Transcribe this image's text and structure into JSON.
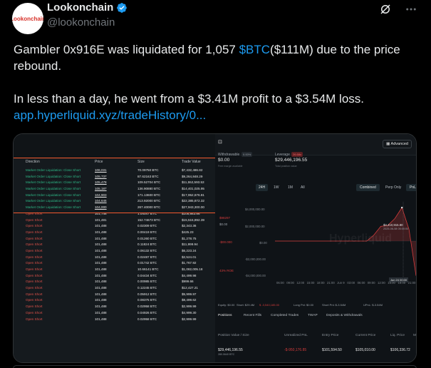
{
  "author": {
    "name": "Lookonchain",
    "handle": "@lookonchain",
    "avatar_text": "Lookonchain"
  },
  "icons": {
    "verified": "verified-badge-icon",
    "grok": "grok-icon",
    "more": "more-icon"
  },
  "tweet": {
    "line1_pre": "Gambler 0x916E was liquidated for 1,057 ",
    "line1_cashtag": "$BTC",
    "line1_post": "($111M) due to the price rebound.",
    "line2": "In less than a day, he went from a $3.41M profit to a $3.54M loss.",
    "link": "app.hyperliquid.xyz/tradeHistory/0..."
  },
  "trade_table": {
    "columns": [
      "Direction",
      "Price",
      "Size",
      "Trade Value"
    ],
    "rows": [
      {
        "dir": "Market Order Liquidation: Close Short",
        "price": "106,031",
        "size": "70.09750 BTC",
        "value": "$7,432,486.82",
        "type": "liq"
      },
      {
        "dir": "Market Order Liquidation: Close Short",
        "price": "105,737",
        "size": "87.62163 BTC",
        "value": "$9,264,848.29",
        "type": "liq"
      },
      {
        "dir": "Market Order Liquidation: Close Short",
        "price": "105,478",
        "size": "109.52704 BTC",
        "value": "$11,552,593.53",
        "type": "liq"
      },
      {
        "dir": "Market Order Liquidation: Close Short",
        "price": "105,187",
        "size": "136.90880 BTC",
        "value": "$14,401,025.95",
        "type": "liq"
      },
      {
        "dir": "Market Order Liquidation: Close Short",
        "price": "104,903",
        "size": "171.13600 BTC",
        "value": "$17,952,676.81",
        "type": "liq"
      },
      {
        "dir": "Market Order Liquidation: Close Short",
        "price": "104,646",
        "size": "213.92000 BTC",
        "value": "$22,385,872.32",
        "type": "liq"
      },
      {
        "dir": "Market Order Liquidation: Close Short",
        "price": "104,000",
        "size": "267.40000 BTC",
        "value": "$27,943,300.00",
        "type": "liq"
      },
      {
        "dir": "Open Short",
        "price": "101,746",
        "size": "1.04047 BTC",
        "value": "$105,863.86",
        "type": "short"
      },
      {
        "dir": "Open Short",
        "price": "101,481",
        "size": "152.74673 BTC",
        "value": "$15,515,892.39",
        "type": "short"
      },
      {
        "dir": "Open Short",
        "price": "101,488",
        "size": "0.02309 BTC",
        "value": "$2,343.36",
        "type": "short"
      },
      {
        "dir": "Open Short",
        "price": "101,488",
        "size": "0.00419 BTC",
        "value": "$425.23",
        "type": "short"
      },
      {
        "dir": "Open Short",
        "price": "101,488",
        "size": "0.01260 BTC",
        "value": "$1,278.75",
        "type": "short"
      },
      {
        "dir": "Open Short",
        "price": "101,488",
        "size": "0.11824 BTC",
        "value": "$11,999.94",
        "type": "short"
      },
      {
        "dir": "Open Short",
        "price": "101,488",
        "size": "0.06132 BTC",
        "value": "$6,223.24",
        "type": "short"
      },
      {
        "dir": "Open Short",
        "price": "101,488",
        "size": "0.02487 BTC",
        "value": "$2,524.01",
        "type": "short"
      },
      {
        "dir": "Open Short",
        "price": "101,488",
        "size": "0.01742 BTC",
        "value": "$1,767.92",
        "type": "short"
      },
      {
        "dir": "Open Short",
        "price": "101,488",
        "size": "10.66141 BTC",
        "value": "$1,082,005.18",
        "type": "short"
      },
      {
        "dir": "Open Short",
        "price": "101,488",
        "size": "0.04434 BTC",
        "value": "$4,499.98",
        "type": "short"
      },
      {
        "dir": "Open Short",
        "price": "101,488",
        "size": "0.00985 BTC",
        "value": "$999.66",
        "type": "short"
      },
      {
        "dir": "Open Short",
        "price": "101,488",
        "size": "0.12245 BTC",
        "value": "$12,427.21",
        "type": "short"
      },
      {
        "dir": "Open Short",
        "price": "101,488",
        "size": "0.05912 BTC",
        "value": "$5,999.97",
        "type": "short"
      },
      {
        "dir": "Open Short",
        "price": "101,488",
        "size": "0.08375 BTC",
        "value": "$8,499.62",
        "type": "short"
      },
      {
        "dir": "Open Short",
        "price": "101,488",
        "size": "0.02958 BTC",
        "value": "$2,999.99",
        "type": "short"
      },
      {
        "dir": "Open Short",
        "price": "101,488",
        "size": "0.04926 BTC",
        "value": "$4,999.30",
        "type": "short"
      },
      {
        "dir": "Open Short",
        "price": "101,488",
        "size": "0.02958 BTC",
        "value": "$2,999.99",
        "type": "short"
      }
    ]
  },
  "dashboard": {
    "advanced_label": "Advanced",
    "withdrawable_label": "Withdrawable",
    "withdrawable_pct": "0.00%",
    "withdrawable_value": "$0.00",
    "withdrawable_sub": "Free margin available",
    "leverage_label": "Leverage",
    "leverage_tag": "26.68x",
    "leverage_value": "$29,446,196.55",
    "leverage_sub": "Total position value",
    "timeframes": [
      "24H",
      "1W",
      "1M",
      "All"
    ],
    "modes": [
      "Combined",
      "Perp Only",
      "PnL"
    ],
    "y_ticks": [
      "$4,000,000.00",
      "$2,000,000.00",
      "$0.00",
      "-$2,000,000.00",
      "-$4,000,000.00"
    ],
    "x_ticks": [
      "06:00",
      "09:00",
      "12:00",
      "15:00",
      "18:00",
      "21:00",
      "Jun 9",
      "03:00",
      "06:00",
      "09:00",
      "12:00",
      "15:00",
      "18:00",
      "21:00"
    ],
    "side_vals": [
      "$98297",
      "$0.00",
      "-$00.000",
      "43% ROE"
    ],
    "callout": "$3,410,915.80",
    "callout_sub": "2025-06-08 05:00:00",
    "crosshair_label": "Jun 24 00:00",
    "bottom_bar": [
      "Equity: $0.00",
      "Short: $29.4M",
      "$ -3,540,185.00",
      "Long Pnl: $0.00",
      "Short Pnl: $-3.54M",
      "UPnL: $-3.54M"
    ],
    "tabs": [
      "Positions",
      "Recent Fills",
      "Completed Trades",
      "TWAP",
      "Deposits & Withdrawals"
    ],
    "pos_headers": [
      "Position Value / Size",
      "Unrealized PnL",
      "Entry Price",
      "Current Price",
      "Liq. Price",
      "M"
    ],
    "pos_row": {
      "value": "$29,446,196.55",
      "size": "280.0640 BTC",
      "pnl": "-$-950,176.85",
      "entry": "$101,594.50",
      "current": "$105,010.00",
      "liq": "$106,336.72"
    },
    "watermark": "Hyperliquid"
  },
  "colors": {
    "accent_link": "#1d9bf0",
    "verified": "#1d9bf0",
    "liq_green": "#2eb886",
    "short_red": "#e0524a",
    "highlight_line": "#f3592e",
    "pnl_red": "#d13b3b"
  },
  "chart_data": {
    "type": "area",
    "ylabel": "PnL",
    "ylim": [
      -4000000,
      4000000
    ],
    "series": [
      {
        "x": [
          0,
          1,
          2,
          3,
          4,
          5,
          6,
          7,
          8,
          9,
          10,
          11,
          12,
          13,
          14,
          15,
          16,
          17,
          18,
          19,
          20
        ],
        "values": [
          0,
          0,
          0,
          0,
          0,
          0,
          0,
          0,
          0,
          0,
          0,
          0,
          0,
          0,
          600000,
          1500000,
          1600000,
          2300000,
          3410915,
          1200000,
          -3540185
        ]
      }
    ]
  }
}
